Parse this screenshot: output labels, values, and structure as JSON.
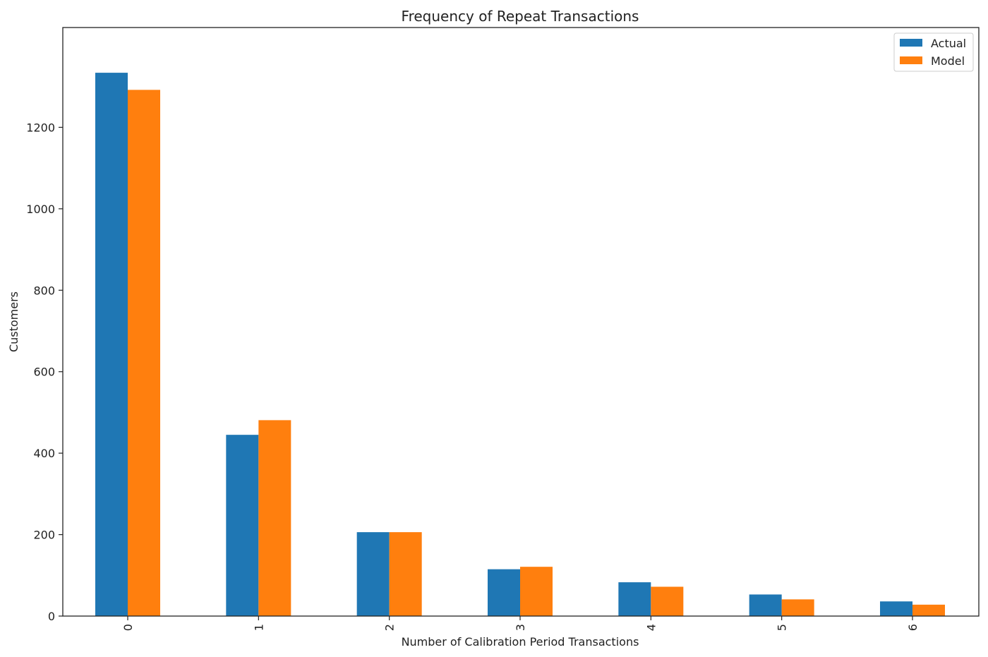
{
  "chart_data": {
    "type": "bar",
    "title": "Frequency of Repeat Transactions",
    "xlabel": "Number of Calibration Period Transactions",
    "ylabel": "Customers",
    "categories": [
      "0",
      "1",
      "2",
      "3",
      "4",
      "5",
      "6"
    ],
    "series": [
      {
        "name": "Actual",
        "color": "#1f77b4",
        "values": [
          1334,
          445,
          206,
          115,
          83,
          53,
          36
        ]
      },
      {
        "name": "Model",
        "color": "#ff7f0e",
        "values": [
          1292,
          481,
          206,
          121,
          72,
          41,
          28
        ]
      }
    ],
    "ylim": [
      0,
      1400
    ],
    "yticks": [
      0,
      200,
      400,
      600,
      800,
      1000,
      1200
    ],
    "ytick_labels": [
      "0",
      "200",
      "400",
      "600",
      "800",
      "1000",
      "1200"
    ],
    "xtick_rotation": "vertical",
    "grid": false,
    "legend_position": "top-right"
  }
}
